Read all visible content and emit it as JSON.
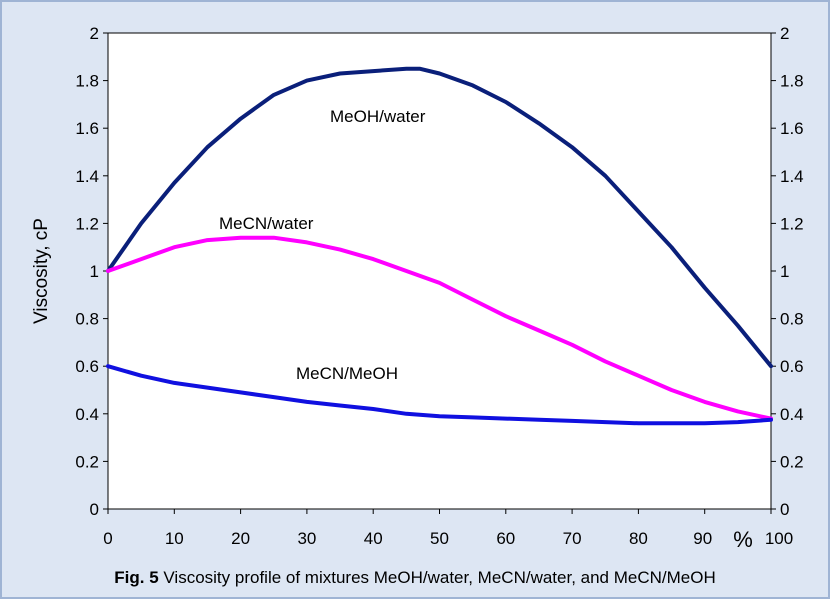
{
  "caption": {
    "number": "Fig. 5",
    "text": "Viscosity profile of mixtures MeOH/water, MeCN/water, and MeCN/MeOH"
  },
  "chart_data": {
    "type": "line",
    "title": "",
    "ylabel": "Viscosity, cP",
    "xlabel_unit": "%",
    "xlim": [
      0,
      100
    ],
    "ylim": [
      0,
      2
    ],
    "x_ticks": [
      "0",
      "10",
      "20",
      "30",
      "40",
      "50",
      "60",
      "70",
      "80",
      "90",
      "100"
    ],
    "y_ticks": [
      "0",
      "0.2",
      "0.4",
      "0.6",
      "0.8",
      "1",
      "1.2",
      "1.4",
      "1.6",
      "1.8",
      "2"
    ],
    "right_axis_mirrored": true,
    "grid": false,
    "series": [
      {
        "name": "MeOH/water",
        "color": "#0a1f7a",
        "x": [
          0,
          5,
          10,
          15,
          20,
          25,
          30,
          35,
          40,
          45,
          47,
          50,
          55,
          60,
          65,
          70,
          75,
          80,
          85,
          90,
          95,
          100
        ],
        "values": [
          1.0,
          1.2,
          1.37,
          1.52,
          1.64,
          1.74,
          1.8,
          1.83,
          1.84,
          1.85,
          1.85,
          1.83,
          1.78,
          1.71,
          1.62,
          1.52,
          1.4,
          1.25,
          1.1,
          0.93,
          0.77,
          0.6
        ]
      },
      {
        "name": "MeCN/water",
        "color": "#ff00ff",
        "x": [
          0,
          5,
          10,
          15,
          20,
          25,
          30,
          35,
          40,
          45,
          50,
          55,
          60,
          65,
          70,
          75,
          80,
          85,
          90,
          95,
          100
        ],
        "values": [
          1.0,
          1.05,
          1.1,
          1.13,
          1.14,
          1.14,
          1.12,
          1.09,
          1.05,
          1.0,
          0.95,
          0.88,
          0.81,
          0.75,
          0.69,
          0.62,
          0.56,
          0.5,
          0.45,
          0.41,
          0.38
        ]
      },
      {
        "name": "MeCN/MeOH",
        "color": "#1010e0",
        "x": [
          0,
          5,
          10,
          15,
          20,
          25,
          30,
          35,
          40,
          45,
          50,
          55,
          60,
          65,
          70,
          75,
          80,
          85,
          90,
          95,
          100
        ],
        "values": [
          0.6,
          0.56,
          0.53,
          0.51,
          0.49,
          0.47,
          0.45,
          0.435,
          0.42,
          0.4,
          0.39,
          0.385,
          0.38,
          0.375,
          0.37,
          0.365,
          0.36,
          0.36,
          0.36,
          0.365,
          0.375
        ]
      }
    ],
    "curve_labels": [
      "MeOH/water",
      "MeCN/water",
      "MeCN/MeOH"
    ]
  }
}
